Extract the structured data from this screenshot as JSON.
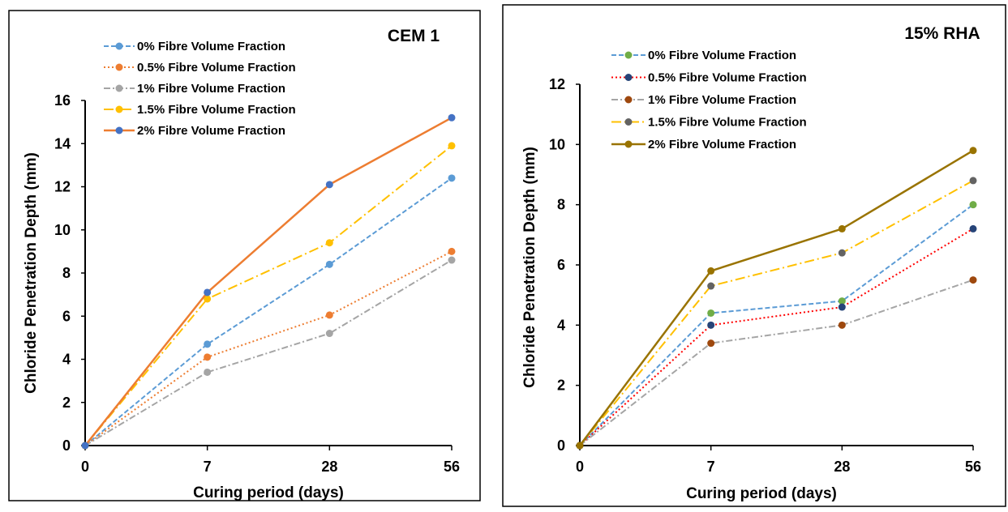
{
  "colors": {
    "blue": "#5B9BD5",
    "orange": "#ED7D31",
    "gray": "#A5A5A5",
    "gold": "#FFC000",
    "darkblue": "#4472C4",
    "green": "#70AD47",
    "navy": "#264478",
    "brown": "#9E480E",
    "darkgray": "#636363",
    "olive": "#997300",
    "red": "#FF0000"
  },
  "chart_data": [
    {
      "type": "line",
      "title": "CEM 1",
      "xlabel": "Curing period (days)",
      "ylabel": "Chloride Penetration Depth (mm)",
      "categories": [
        "0",
        "7",
        "28",
        "56"
      ],
      "ylim": [
        0,
        16
      ],
      "yticks": [
        "0",
        "2",
        "4",
        "6",
        "8",
        "10",
        "12",
        "14",
        "16"
      ],
      "grid": false,
      "legend_position": "top-left",
      "series": [
        {
          "name": "0%  Fibre Volume Fraction",
          "values": [
            0,
            4.7,
            8.4,
            12.4
          ],
          "line_color": "#5B9BD5",
          "marker_color": "#5B9BD5",
          "dash": "dash"
        },
        {
          "name": "0.5% Fibre Volume Fraction",
          "values": [
            0,
            4.1,
            6.05,
            9.0
          ],
          "line_color": "#ED7D31",
          "marker_color": "#ED7D31",
          "dash": "dot"
        },
        {
          "name": "1% Fibre Volume Fraction",
          "values": [
            0,
            3.4,
            5.2,
            8.6
          ],
          "line_color": "#A5A5A5",
          "marker_color": "#A5A5A5",
          "dash": "dashdot"
        },
        {
          "name": "1.5% Fibre Volume Fraction",
          "values": [
            0,
            6.8,
            9.4,
            13.9
          ],
          "line_color": "#FFC000",
          "marker_color": "#FFC000",
          "dash": "longdashdot"
        },
        {
          "name": "2% Fibre Volume Fraction",
          "values": [
            0,
            7.1,
            12.1,
            15.2
          ],
          "line_color": "#ED7D31",
          "marker_color": "#4472C4",
          "dash": "solid"
        }
      ]
    },
    {
      "type": "line",
      "title": "15% RHA",
      "xlabel": "Curing period (days)",
      "ylabel": "Chloride Penetration Depth (mm)",
      "categories": [
        "0",
        "7",
        "28",
        "56"
      ],
      "ylim": [
        0,
        12
      ],
      "yticks": [
        "0",
        "2",
        "4",
        "6",
        "8",
        "10",
        "12"
      ],
      "grid": false,
      "legend_position": "top-left",
      "series": [
        {
          "name": "0% Fibre Volume Fraction",
          "values": [
            0,
            4.4,
            4.8,
            8.0
          ],
          "line_color": "#5B9BD5",
          "marker_color": "#70AD47",
          "dash": "dash"
        },
        {
          "name": "0.5% Fibre Volume Fraction",
          "values": [
            0,
            4.0,
            4.6,
            7.2
          ],
          "line_color": "#FF0000",
          "marker_color": "#264478",
          "dash": "dot"
        },
        {
          "name": "1% Fibre Volume Fraction",
          "values": [
            0,
            3.4,
            4.0,
            5.5
          ],
          "line_color": "#A5A5A5",
          "marker_color": "#9E480E",
          "dash": "dashdot"
        },
        {
          "name": "1.5% Fibre Volume Fraction",
          "values": [
            0,
            5.3,
            6.4,
            8.8
          ],
          "line_color": "#FFC000",
          "marker_color": "#636363",
          "dash": "longdashdot"
        },
        {
          "name": "2% Fibre Volume Fraction",
          "values": [
            0,
            5.8,
            7.2,
            9.8
          ],
          "line_color": "#997300",
          "marker_color": "#997300",
          "dash": "solid"
        }
      ]
    }
  ]
}
